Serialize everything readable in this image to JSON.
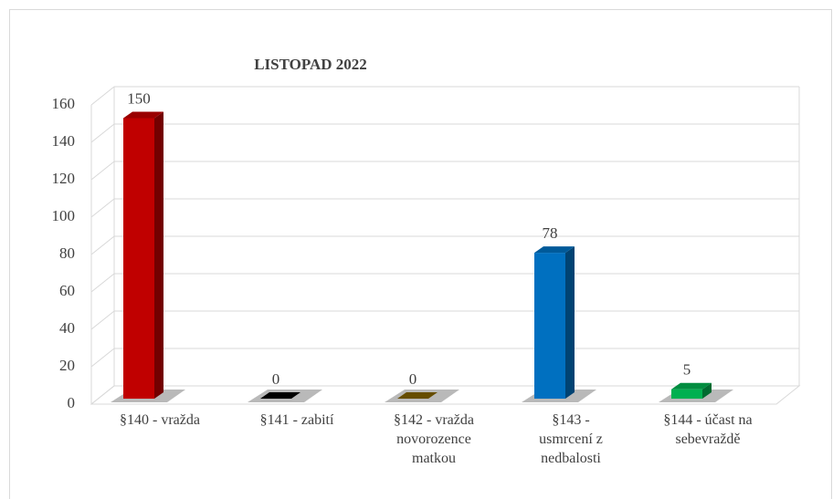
{
  "chart_data": {
    "type": "bar3d",
    "title": "LISTOPAD 2022",
    "categories": [
      "§140 - vražda",
      "§141 - zabití",
      "§142 - vražda novorozence matkou",
      "§143 - usmrcení z nedbalosti",
      "§144 - účast na sebevraždě"
    ],
    "values": [
      150,
      0,
      0,
      78,
      5
    ],
    "colors": [
      "#c00000",
      "#000000",
      "#7f6000",
      "#0070c0",
      "#00b050"
    ],
    "ylim": [
      0,
      160
    ],
    "yticks": [
      0,
      20,
      40,
      60,
      80,
      100,
      120,
      140,
      160
    ],
    "grid": true
  }
}
